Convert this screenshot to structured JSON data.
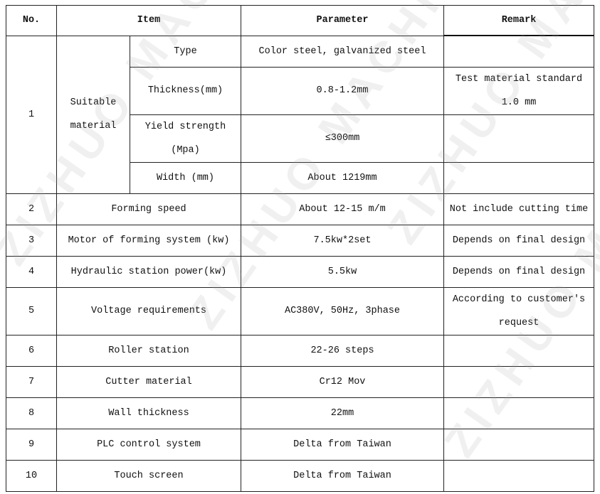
{
  "watermark": "ZIZHUO MACHINERY",
  "headers": {
    "no": "No.",
    "item": "Item",
    "parameter": "Parameter",
    "remark": "Remark"
  },
  "group1": {
    "no": "1",
    "label_line1": "Suitable",
    "label_line2": "material",
    "rows": [
      {
        "item": "Type",
        "parameter": "Color steel, galvanized  steel",
        "remark": ""
      },
      {
        "item": "Thickness(mm)",
        "parameter": "0.8-1.2mm",
        "remark_line1": "Test material standard",
        "remark_line2": "1.0 mm"
      },
      {
        "item_line1": "Yield strength",
        "item_line2": "(Mpa)",
        "parameter": "≤300mm",
        "remark": ""
      },
      {
        "item": "Width (mm)",
        "parameter": "About 1219mm",
        "remark": ""
      }
    ]
  },
  "rows": [
    {
      "no": "2",
      "item": "Forming speed",
      "parameter": "About 12-15 m/m",
      "remark": "Not include cutting time"
    },
    {
      "no": "3",
      "item": "Motor of forming system (kw)",
      "parameter": "7.5kw*2set",
      "remark": "Depends on final design"
    },
    {
      "no": "4",
      "item": "Hydraulic station power(kw)",
      "parameter": "5.5kw",
      "remark": "Depends on final design"
    },
    {
      "no": "5",
      "item": "Voltage requirements",
      "parameter": "AC380V, 50Hz, 3phase",
      "remark_line1": "According to customer's",
      "remark_line2": "request"
    },
    {
      "no": "6",
      "item": "Roller station",
      "parameter": "22-26 steps",
      "remark": ""
    },
    {
      "no": "7",
      "item": "Cutter material",
      "parameter": "Cr12 Mov",
      "remark": ""
    },
    {
      "no": "8",
      "item": "Wall thickness",
      "parameter": "22mm",
      "remark": ""
    },
    {
      "no": "9",
      "item": "PLC control system",
      "parameter": "Delta from Taiwan",
      "remark": ""
    },
    {
      "no": "10",
      "item": "Touch screen",
      "parameter": "Delta from Taiwan",
      "remark": ""
    }
  ]
}
